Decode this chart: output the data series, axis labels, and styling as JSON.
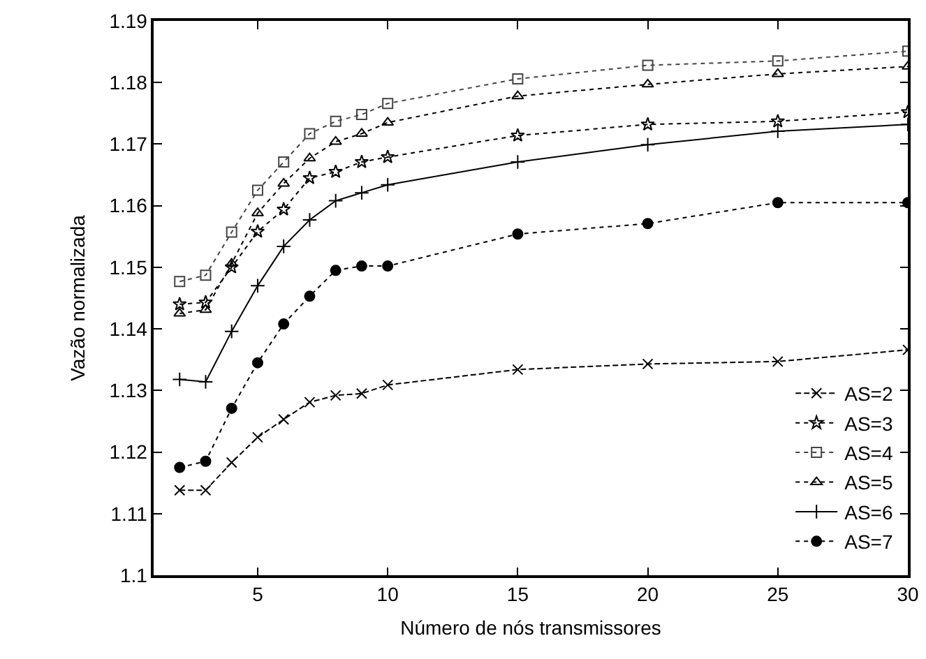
{
  "chart_data": {
    "type": "line",
    "xlabel": "Número de nós transmissores",
    "ylabel": "Vazão normalizada",
    "x": [
      2,
      3,
      4,
      5,
      6,
      7,
      8,
      9,
      10,
      15,
      20,
      25,
      30
    ],
    "series": [
      {
        "name": "AS=2",
        "color": "#000000",
        "marker": "x",
        "line_style": "dashed",
        "values": [
          1.1138,
          1.1138,
          1.1183,
          1.1224,
          1.1253,
          1.1281,
          1.1292,
          1.1295,
          1.1309,
          1.1334,
          1.1343,
          1.1347,
          1.1366
        ]
      },
      {
        "name": "AS=3",
        "color": "#000000",
        "marker": "star",
        "line_style": "dotted",
        "values": [
          1.144,
          1.1443,
          1.15,
          1.1558,
          1.1594,
          1.1645,
          1.1655,
          1.1671,
          1.1679,
          1.1714,
          1.1732,
          1.1737,
          1.1752
        ]
      },
      {
        "name": "AS=4",
        "color": "#444444",
        "marker": "square",
        "line_style": "dotted",
        "values": [
          1.1477,
          1.1487,
          1.1557,
          1.1625,
          1.1671,
          1.1717,
          1.1737,
          1.1748,
          1.1766,
          1.1806,
          1.1828,
          1.1835,
          1.1851
        ]
      },
      {
        "name": "AS=5",
        "color": "#000000",
        "marker": "triangle",
        "line_style": "dotted",
        "values": [
          1.1425,
          1.1431,
          1.1506,
          1.1588,
          1.1636,
          1.1677,
          1.1704,
          1.1717,
          1.1735,
          1.1778,
          1.1797,
          1.1814,
          1.1826
        ]
      },
      {
        "name": "AS=6",
        "color": "#000000",
        "marker": "cross",
        "line_style": "solid",
        "values": [
          1.1318,
          1.1314,
          1.1396,
          1.147,
          1.1534,
          1.1577,
          1.1608,
          1.1621,
          1.1634,
          1.1671,
          1.1699,
          1.1721,
          1.1732
        ]
      },
      {
        "name": "AS=7",
        "color": "#000000",
        "marker": "circle",
        "line_style": "dotted",
        "values": [
          1.1175,
          1.1185,
          1.1271,
          1.1345,
          1.1408,
          1.1453,
          1.1495,
          1.1502,
          1.1502,
          1.1554,
          1.1571,
          1.1605,
          1.1605
        ]
      }
    ],
    "xlim": [
      1,
      30
    ],
    "xticks": [
      5,
      10,
      15,
      20,
      25,
      30
    ],
    "ylim": [
      1.1,
      1.19
    ],
    "yticks": [
      1.1,
      1.11,
      1.12,
      1.13,
      1.14,
      1.15,
      1.16,
      1.17,
      1.18,
      1.19
    ],
    "grid": false,
    "legend": "bottom right"
  }
}
